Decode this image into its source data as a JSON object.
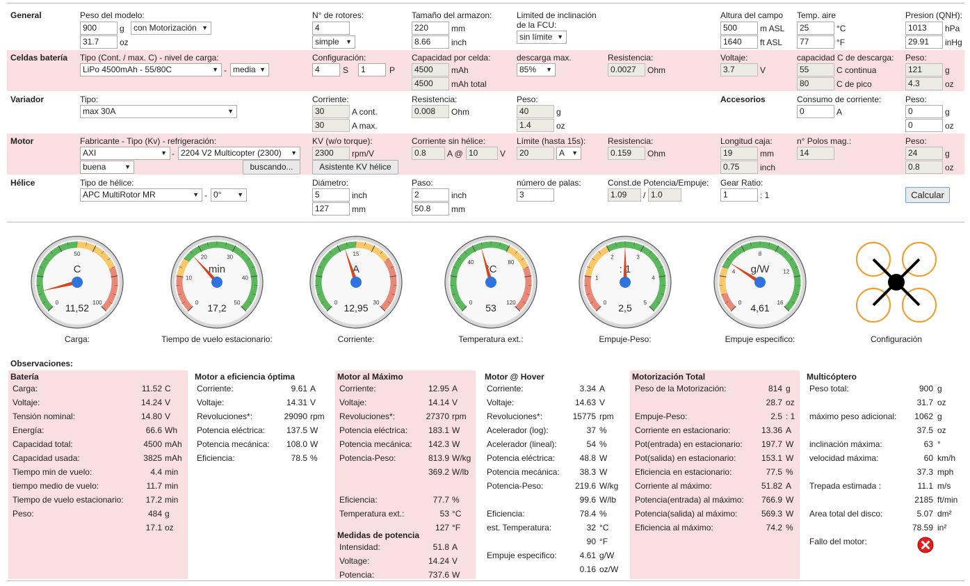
{
  "general": {
    "section": "General",
    "peso_label": "Peso del modelo:",
    "peso_g": "900",
    "peso_g_unit": "g",
    "peso_oz": "31.7",
    "peso_oz_unit": "oz",
    "motorizacion": "con Motorización",
    "rotores_label": "N° de rotores:",
    "rotores": "4",
    "rotores_mode": "simple",
    "armazon_label": "Tamaño del armazon:",
    "armazon_mm": "220",
    "armazon_mm_unit": "mm",
    "armazon_inch": "8.66",
    "armazon_inch_unit": "inch",
    "incl_label": "Limited de inclinación de la FCU:",
    "incl_value": "sin límite",
    "altura_label": "Altura del campo",
    "altura_m": "500",
    "altura_m_unit": "m ASL",
    "altura_ft": "1640",
    "altura_ft_unit": "ft ASL",
    "temp_label": "Temp. aire",
    "temp_c": "25",
    "temp_c_unit": "°C",
    "temp_f": "77",
    "temp_f_unit": "°F",
    "presion_label": "Presion (QNH):",
    "presion_hpa": "1013",
    "presion_hpa_unit": "hPa",
    "presion_inhg": "29.91",
    "presion_inhg_unit": "inHg"
  },
  "bateria": {
    "section": "Celdas batería",
    "tipo_label": "Tipo (Cont. / max. C) - nivel de carga:",
    "tipo": "LiPo 4500mAh - 55/80C",
    "nivel": "media",
    "config_label": "Configuración:",
    "config_s": "4",
    "config_s_unit": "S",
    "config_p": "1",
    "config_p_unit": "P",
    "cap_label": "Capacidad por celda:",
    "cap": "4500",
    "cap_unit": "mAh",
    "cap_total": "4500",
    "cap_total_unit": "mAh total",
    "desc_label": "descarga max.",
    "desc": "85%",
    "res_label": "Resistencia:",
    "res": "0.0027",
    "res_unit": "Ohm",
    "volt_label": "Voltaje:",
    "volt": "3.7",
    "volt_unit": "V",
    "crate_label": "capacidad C de descarga:",
    "c_cont": "55",
    "c_cont_unit": "C continua",
    "c_pico": "80",
    "c_pico_unit": "C de pico",
    "peso_label": "Peso:",
    "peso_g": "121",
    "peso_g_unit": "g",
    "peso_oz": "4.3",
    "peso_oz_unit": "oz"
  },
  "variador": {
    "section": "Variador",
    "tipo_label": "Tipo:",
    "tipo": "max 30A",
    "corr_label": "Corriente:",
    "corr_cont": "30",
    "corr_cont_unit": "A cont.",
    "corr_max": "30",
    "corr_max_unit": "A max.",
    "res_label": "Resistencia:",
    "res": "0.008",
    "res_unit": "Ohm",
    "peso_label": "Peso:",
    "peso_g": "40",
    "peso_g_unit": "g",
    "peso_oz": "1.4",
    "peso_oz_unit": "oz",
    "acc_label": "Accesorios",
    "consumo_label": "Consumo de corriente:",
    "consumo": "0",
    "consumo_unit": "A",
    "acc_peso_label": "Peso:",
    "acc_peso_g": "0",
    "acc_peso_g_unit": "g",
    "acc_peso_oz": "0",
    "acc_peso_oz_unit": "oz"
  },
  "motor": {
    "section": "Motor",
    "fab_label": "Fabricante - Tipo (Kv) - refrigeración:",
    "fabricante": "AXI",
    "tipo": "2204 V2 Multicopter (2300)",
    "refrig": "buena",
    "buscando": "buscando...",
    "kv_label": "KV (w/o torque):",
    "kv": "2300",
    "kv_unit": "rpm/V",
    "kv_btn": "Asistente KV hélice",
    "sinh_label": "Corriente sin hélice:",
    "sinh_a": "0.8",
    "sinh_a_unit": "A @",
    "sinh_v": "10",
    "sinh_v_unit": "V",
    "lim_label": "Límite (hasta 15s):",
    "lim": "20",
    "lim_unit": "A",
    "res_label": "Resistencia:",
    "res": "0.159",
    "res_unit": "Ohm",
    "long_label": "Longitud caja:",
    "long_mm": "19",
    "long_mm_unit": "mm",
    "long_inch": "0.75",
    "long_inch_unit": "inch",
    "polos_label": "n° Polos mag.:",
    "polos": "14",
    "peso_label": "Peso:",
    "peso_g": "24",
    "peso_g_unit": "g",
    "peso_oz": "0.8",
    "peso_oz_unit": "oz"
  },
  "helice": {
    "section": "Hélice",
    "tipo_label": "Tipo de hélice:",
    "tipo": "APC MultiRotor MR",
    "angulo": "0°",
    "diam_label": "Diámetro:",
    "diam_inch": "5",
    "diam_inch_unit": "inch",
    "diam_mm": "127",
    "diam_mm_unit": "mm",
    "paso_label": "Paso:",
    "paso_inch": "2",
    "paso_inch_unit": "inch",
    "paso_mm": "50.8",
    "paso_mm_unit": "mm",
    "palas_label": "número de palas:",
    "palas": "3",
    "const_label": "Const.de Potencia/Empuje:",
    "const_1": "1.09",
    "const_sep": "/",
    "const_2": "1.0",
    "gear_label": "Gear Ratio:",
    "gear": "1",
    "gear_unit": ": 1",
    "calcular": "Calcular"
  },
  "gauges": [
    {
      "unit": "C",
      "value": 11.52,
      "display": "11,52",
      "min": 0,
      "max": 100,
      "ticks": [
        "0",
        "50",
        "100"
      ],
      "caption": "Carga:",
      "zones": [
        [
          "green",
          0,
          0.5
        ],
        [
          "yellow",
          0.5,
          0.75
        ],
        [
          "red",
          0.75,
          1
        ]
      ]
    },
    {
      "unit": "min",
      "value": 17.2,
      "display": "17,2",
      "min": 0,
      "max": 50,
      "ticks": [
        "0",
        "10",
        "20",
        "30",
        "40",
        "50"
      ],
      "caption": "Tiempo de vuelo estacionario:",
      "zones": [
        [
          "red",
          0,
          0.2
        ],
        [
          "yellow",
          0.2,
          0.3
        ],
        [
          "green",
          0.3,
          1
        ]
      ]
    },
    {
      "unit": "A",
      "value": 12.95,
      "display": "12,95",
      "min": 0,
      "max": 30,
      "ticks": [
        "0",
        "15",
        "30"
      ],
      "caption": "Corriente:",
      "zones": [
        [
          "green",
          0,
          0.5
        ],
        [
          "yellow",
          0.5,
          0.7
        ],
        [
          "red",
          0.7,
          1
        ]
      ]
    },
    {
      "unit": "°C",
      "value": 53,
      "display": "53",
      "min": 0,
      "max": 120,
      "ticks": [
        "0",
        "40",
        "80",
        "120"
      ],
      "caption": "Temperatura ext.:",
      "zones": [
        [
          "green",
          0,
          0.6
        ],
        [
          "yellow",
          0.6,
          0.75
        ],
        [
          "red",
          0.75,
          1
        ]
      ]
    },
    {
      "unit": ": 1",
      "value": 2.5,
      "display": "2,5",
      "min": 0,
      "max": 5,
      "ticks": [
        "0",
        "1",
        "2",
        "3",
        "4",
        "5"
      ],
      "caption": "Empuje-Peso:",
      "zones": [
        [
          "red",
          0,
          0.2
        ],
        [
          "yellow",
          0.2,
          0.4
        ],
        [
          "green",
          0.4,
          1
        ]
      ]
    },
    {
      "unit": "g/W",
      "value": 4.61,
      "display": "4,61",
      "min": 0,
      "max": 16,
      "ticks": [
        "0",
        "4",
        "8",
        "12",
        "16"
      ],
      "caption": "Empuje especifico:",
      "zones": [
        [
          "red",
          0,
          0.1
        ],
        [
          "yellow",
          0.1,
          0.25
        ],
        [
          "green",
          0.25,
          1
        ]
      ]
    }
  ],
  "config_caption": "Configuración",
  "obs": {
    "title": "Observaciones:",
    "bateria": {
      "title": "Batería",
      "rows": [
        [
          "Carga:",
          "11.52",
          "C"
        ],
        [
          "Voltaje:",
          "14.24",
          "V"
        ],
        [
          "Tensión nominal:",
          "14.80",
          "V"
        ],
        [
          "Energía:",
          "66.6",
          "Wh"
        ],
        [
          "Capacidad total:",
          "4500",
          "mAh"
        ],
        [
          "Capacidad usada:",
          "3825",
          "mAh"
        ],
        [
          "Tiempo min de vuelo:",
          "4.4",
          "min"
        ],
        [
          "tiempo medio de vuelo:",
          "11.7",
          "min"
        ],
        [
          "Tiempo de vuelo estacionario:",
          "17.2",
          "min"
        ],
        [
          "Peso:",
          "484",
          "g"
        ],
        [
          "",
          "17.1",
          "oz"
        ]
      ]
    },
    "optima": {
      "title": "Motor a eficiencia óptima",
      "rows": [
        [
          "Corriente:",
          "9.61",
          "A"
        ],
        [
          "Voltaje:",
          "14.31",
          "V"
        ],
        [
          "Revoluciones*:",
          "29090",
          "rpm"
        ],
        [
          "Potencia eléctrica:",
          "137.5",
          "W"
        ],
        [
          "Potencia mecánica:",
          "108.0",
          "W"
        ],
        [
          "Eficiencia:",
          "78.5",
          "%"
        ]
      ]
    },
    "maximo": {
      "title": "Motor al Máximo",
      "rows": [
        [
          "Corriente:",
          "12.95",
          "A"
        ],
        [
          "Voltaje:",
          "14.14",
          "V"
        ],
        [
          "Revoluciones*:",
          "27370",
          "rpm"
        ],
        [
          "Potencia eléctrica:",
          "183.1",
          "W"
        ],
        [
          "Potencia mecánica:",
          "142.3",
          "W"
        ],
        [
          "Potencia-Peso:",
          "813.9",
          "W/kg"
        ],
        [
          "",
          "369.2",
          "W/lb"
        ],
        [
          "",
          "",
          " "
        ],
        [
          "Eficiencia:",
          "77.7",
          "%"
        ],
        [
          "Temperatura ext.:",
          "53",
          "°C"
        ],
        [
          "",
          "127",
          "°F"
        ]
      ],
      "medidas_title": "Medidas de potencia",
      "medidas": [
        [
          "Intensidad:",
          "51.8",
          "A"
        ],
        [
          "Voltage:",
          "14.24",
          "V"
        ],
        [
          "Potencia:",
          "737.6",
          "W"
        ]
      ]
    },
    "hover": {
      "title": "Motor @ Hover",
      "rows": [
        [
          "Corriente:",
          "3.34",
          "A"
        ],
        [
          "Voltaje:",
          "14.63",
          "V"
        ],
        [
          "Revoluciones*:",
          "15775",
          "rpm"
        ],
        [
          "Acelerador (log):",
          "37",
          "%"
        ],
        [
          "Acelerador (lineal):",
          "54",
          "%"
        ],
        [
          "Potencia eléctrica:",
          "48.8",
          "W"
        ],
        [
          "Potencia mecánica:",
          "38.3",
          "W"
        ],
        [
          "Potencia-Peso:",
          "219.6",
          "W/kg"
        ],
        [
          "",
          "99.6",
          "W/lb"
        ],
        [
          "Eficiencia:",
          "78.4",
          "%"
        ],
        [
          "est. Temperatura:",
          "32",
          "°C"
        ],
        [
          "",
          "90",
          "°F"
        ],
        [
          "Empuje especifico:",
          "4.61",
          "g/W"
        ],
        [
          "",
          "0.16",
          "oz/W"
        ]
      ]
    },
    "total": {
      "title": "Motorización Total",
      "rows": [
        [
          "Peso de la Motorización:",
          "814",
          "g"
        ],
        [
          "",
          "28.7",
          "oz"
        ],
        [
          "Empuje-Peso:",
          "2.5",
          ": 1"
        ],
        [
          "Corriente en estacionario:",
          "13.36",
          "A"
        ],
        [
          "Pot(entrada) en estacionario:",
          "197.7",
          "W"
        ],
        [
          "Pot(salida) en estacionario:",
          "153.1",
          "W"
        ],
        [
          "Eficiencia en estacionario:",
          "77.5",
          "%"
        ],
        [
          "Corriente al máximo:",
          "51.82",
          "A"
        ],
        [
          "Potencia(entrada) al máximo:",
          "766.9",
          "W"
        ],
        [
          "Potencia(salida) al máximo:",
          "569.3",
          "W"
        ],
        [
          "Eficiencia al máximo:",
          "74.2",
          "%"
        ]
      ]
    },
    "multi": {
      "title": "Multicóptero",
      "rows": [
        [
          "Peso total:",
          "900",
          "g"
        ],
        [
          "",
          "31.7",
          "oz"
        ],
        [
          "máximo peso adicional:",
          "1062",
          "g"
        ],
        [
          "",
          "37.5",
          "oz"
        ],
        [
          "inclinación máxima:",
          "63",
          "°"
        ],
        [
          "velocidad máxima:",
          "60",
          "km/h"
        ],
        [
          "",
          "37.3",
          "mph"
        ],
        [
          "Trepada estimada :",
          "11.1",
          "m/s"
        ],
        [
          "",
          "2185",
          "ft/min"
        ],
        [
          "Area total del disco:",
          "5.07",
          "dm²"
        ],
        [
          "",
          "78.59",
          "in²"
        ],
        [
          "Fallo del motor:",
          "",
          ""
        ]
      ]
    }
  },
  "colors": {
    "pink": "#f9dfe1",
    "green": "#5cb85c",
    "yellow": "#f9c86b",
    "red": "#ea8877",
    "needle": "#d9441e",
    "hub": "#2f74dc",
    "fail": "#e02020"
  }
}
